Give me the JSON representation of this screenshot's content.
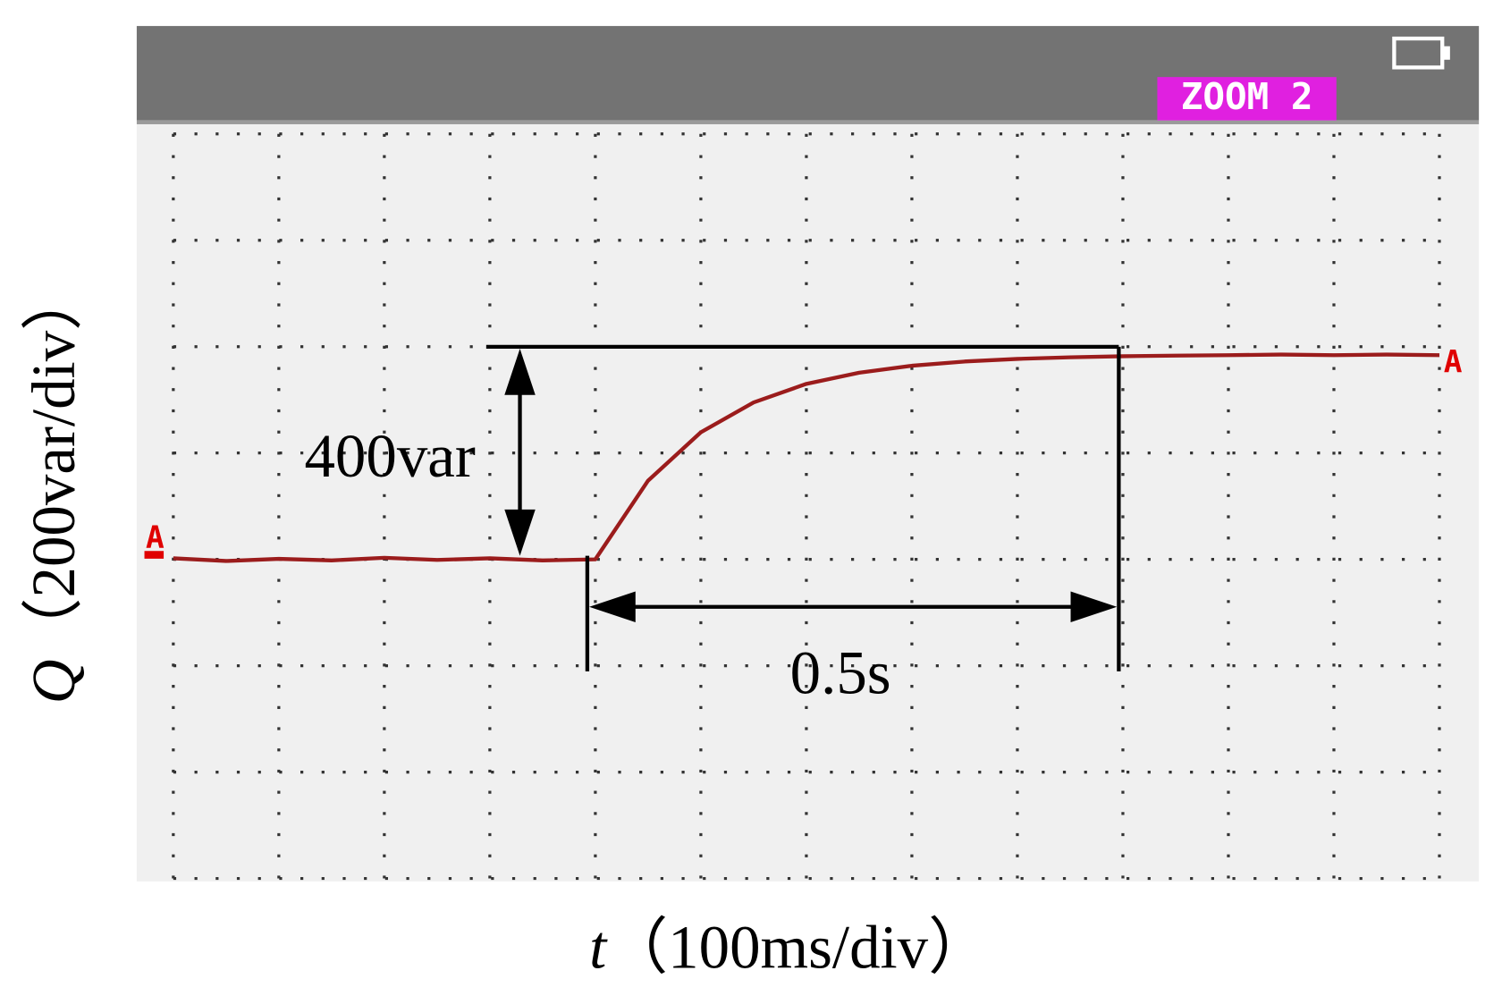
{
  "chart_data": {
    "type": "line",
    "x_label_symbol": "t",
    "x_label_unit": "（100ms/div）",
    "y_label_symbol": "Q",
    "y_label_unit": "（200var/div）",
    "zoom_label": "ZOOM 2",
    "marker_label": "A",
    "annotations": [
      "400var",
      "0.5s"
    ],
    "x": [
      0,
      50,
      100,
      150,
      200,
      250,
      300,
      350,
      400,
      450,
      500,
      550,
      600,
      650,
      700,
      750,
      800,
      850,
      900,
      950,
      1000,
      1050,
      1100,
      1150,
      1200
    ],
    "values": [
      2,
      -3,
      1,
      -2,
      3,
      -1,
      2,
      -2,
      0,
      148,
      239,
      295,
      330,
      351,
      364,
      372,
      377,
      380,
      382,
      383,
      384,
      385,
      384,
      385,
      384
    ],
    "color": "#9b1c1c",
    "xlim": [
      0,
      1200
    ],
    "ylim": [
      -600,
      800
    ],
    "xticks": [
      0,
      100,
      200,
      300,
      400,
      500,
      600,
      700,
      800,
      900,
      1000,
      1100,
      1200
    ],
    "yticks": [
      -600,
      -400,
      -200,
      0,
      200,
      400,
      600,
      800
    ],
    "grid": true
  }
}
